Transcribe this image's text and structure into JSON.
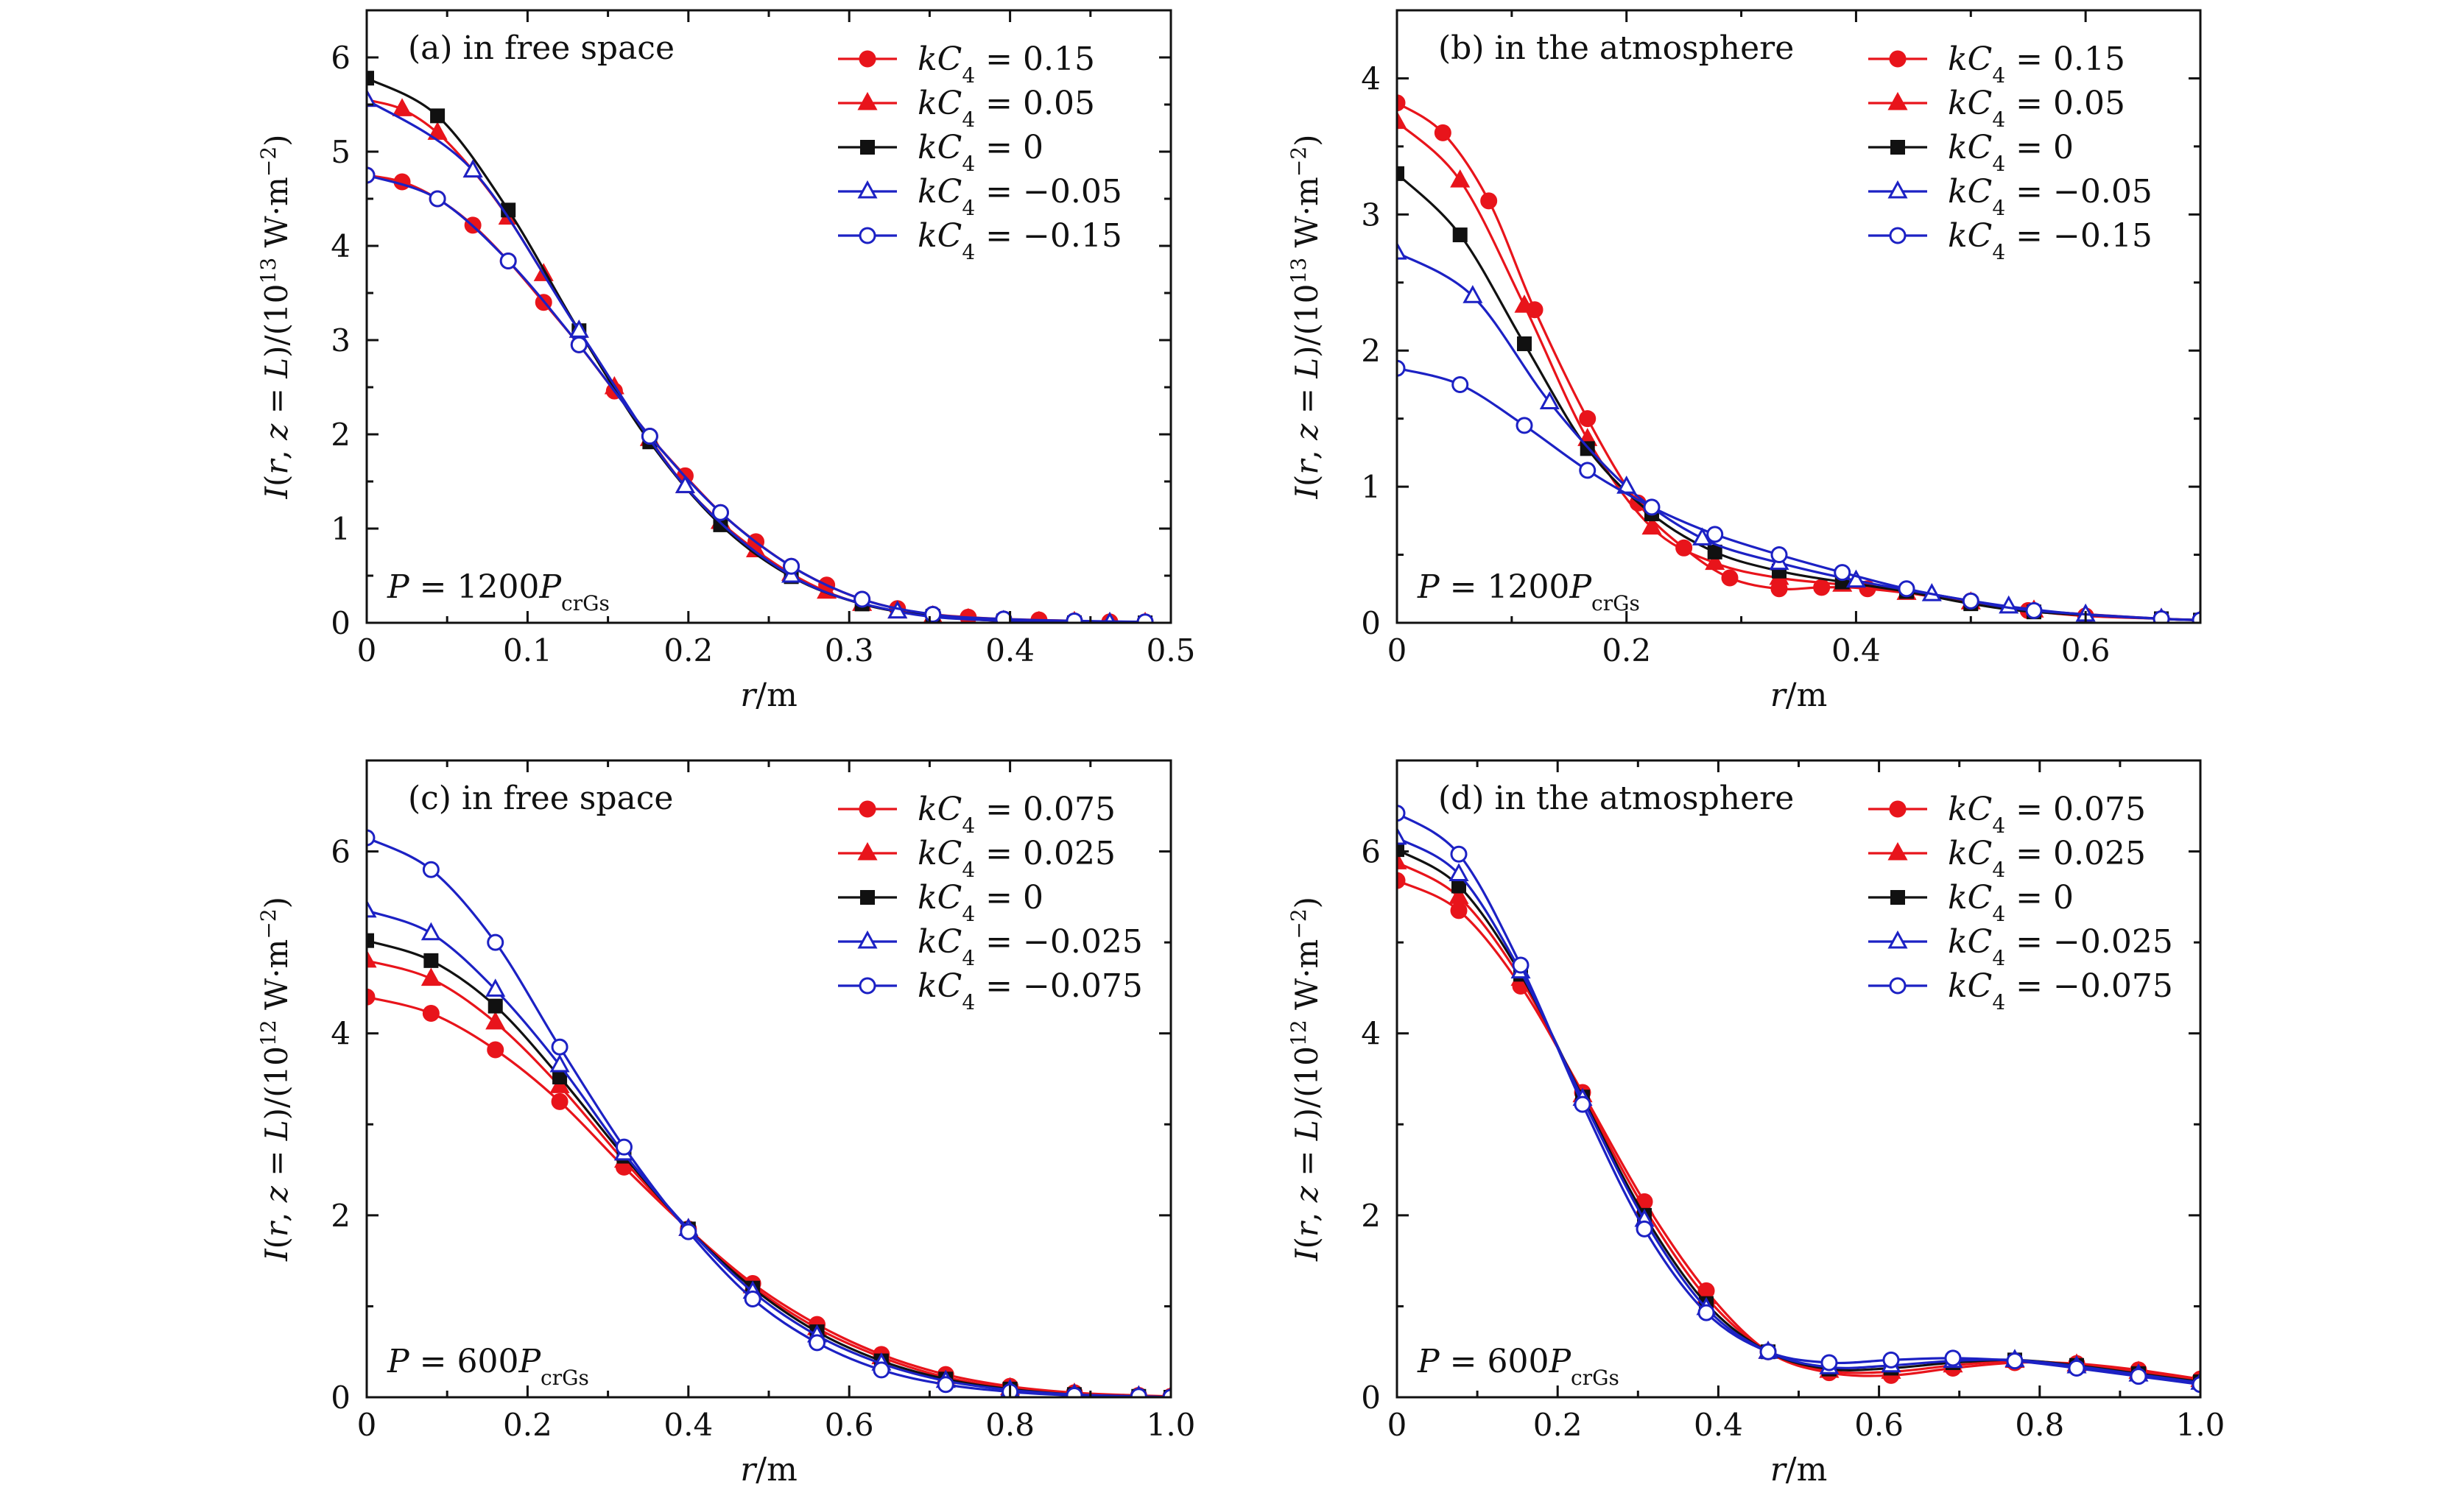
{
  "chart_data": [
    {
      "type": "line",
      "panel_label": "(a) in free space",
      "power_label": {
        "prefix": "P",
        "eq": " = 1200",
        "sym": "P",
        "sub": "crGs"
      },
      "xlabel": {
        "var": "r",
        "rest": "/m"
      },
      "ylabel": {
        "main": "I(r, z = L)/(10",
        "exp": "13",
        "unit": " W·m",
        "exp2": "−2",
        "close": ")"
      },
      "xlim": [
        0,
        0.5
      ],
      "ylim": [
        0,
        6.5
      ],
      "xticks": [
        0,
        0.1,
        0.2,
        0.3,
        0.4,
        0.5
      ],
      "xtick_labels": [
        "0",
        "0.1",
        "0.2",
        "0.3",
        "0.4",
        "0.5"
      ],
      "yticks": [
        0,
        1,
        2,
        3,
        4,
        5,
        6
      ],
      "ytick_labels": [
        "0",
        "1",
        "2",
        "3",
        "4",
        "5",
        "6"
      ],
      "legend_position": "top-right",
      "series": [
        {
          "name": "kC4 = 0.15",
          "value_label": "0.15",
          "color": "#e8141b",
          "marker": "circle-filled",
          "x": [
            0,
            0.022,
            0.044,
            0.066,
            0.088,
            0.11,
            0.132,
            0.154,
            0.176,
            0.198,
            0.22,
            0.242,
            0.264,
            0.286,
            0.308,
            0.33,
            0.352,
            0.374,
            0.396,
            0.418,
            0.44,
            0.462,
            0.484
          ],
          "y": [
            4.75,
            4.68,
            4.5,
            4.22,
            3.84,
            3.4,
            2.95,
            2.46,
            1.98,
            1.56,
            1.17,
            0.86,
            0.6,
            0.4,
            0.25,
            0.15,
            0.09,
            0.06,
            0.04,
            0.03,
            0.02,
            0.01,
            0.01
          ]
        },
        {
          "name": "kC4 = 0.05",
          "value_label": "0.05",
          "color": "#e8141b",
          "marker": "triangle-filled",
          "x": [
            0,
            0.022,
            0.044,
            0.066,
            0.088,
            0.11,
            0.132,
            0.154,
            0.176,
            0.198,
            0.22,
            0.242,
            0.264,
            0.286,
            0.308,
            0.33,
            0.352,
            0.374,
            0.396,
            0.418,
            0.44,
            0.462,
            0.484
          ],
          "y": [
            5.55,
            5.45,
            5.2,
            4.8,
            4.3,
            3.7,
            3.1,
            2.5,
            1.95,
            1.45,
            1.07,
            0.77,
            0.52,
            0.33,
            0.2,
            0.12,
            0.07,
            0.04,
            0.02,
            0.01,
            0.01,
            0.0,
            0.0
          ]
        },
        {
          "name": "kC4 = 0",
          "value_label": "0",
          "color": "#111111",
          "marker": "square-filled",
          "x": [
            0,
            0.044,
            0.088,
            0.132,
            0.176,
            0.22,
            0.264,
            0.308,
            0.352,
            0.396,
            0.44,
            0.484
          ],
          "y": [
            5.78,
            5.38,
            4.38,
            3.1,
            1.92,
            1.04,
            0.49,
            0.2,
            0.07,
            0.02,
            0.0,
            0.0
          ]
        },
        {
          "name": "kC4 = −0.05",
          "value_label": "−0.05",
          "color": "#1c21c4",
          "marker": "triangle-open",
          "x": [
            0,
            0.066,
            0.132,
            0.198,
            0.264,
            0.33,
            0.396,
            0.462
          ],
          "y": [
            5.55,
            4.8,
            3.1,
            1.45,
            0.5,
            0.12,
            0.02,
            0.0
          ]
        },
        {
          "name": "kC4 = −0.15",
          "value_label": "−0.15",
          "color": "#1c21c4",
          "marker": "circle-open",
          "x": [
            0,
            0.044,
            0.088,
            0.132,
            0.176,
            0.22,
            0.264,
            0.308,
            0.352,
            0.396,
            0.44,
            0.484
          ],
          "y": [
            4.75,
            4.5,
            3.84,
            2.95,
            1.98,
            1.17,
            0.6,
            0.25,
            0.09,
            0.04,
            0.02,
            0.01
          ]
        }
      ]
    },
    {
      "type": "line",
      "panel_label": "(b) in the atmosphere",
      "power_label": {
        "prefix": "P",
        "eq": " = 1200",
        "sym": "P",
        "sub": "crGs"
      },
      "xlabel": {
        "var": "r",
        "rest": "/m"
      },
      "ylabel": {
        "main": "I(r, z = L)/(10",
        "exp": "13",
        "unit": " W·m",
        "exp2": "−2",
        "close": ")"
      },
      "xlim": [
        0,
        0.7
      ],
      "ylim": [
        0,
        4.5
      ],
      "xticks": [
        0,
        0.2,
        0.4,
        0.6
      ],
      "xtick_labels": [
        "0",
        "0.2",
        "0.4",
        "0.6"
      ],
      "yticks": [
        0,
        1,
        2,
        3,
        4
      ],
      "ytick_labels": [
        "0",
        "1",
        "2",
        "3",
        "4"
      ],
      "legend_position": "top-right",
      "series": [
        {
          "name": "kC4 = 0.15",
          "value_label": "0.15",
          "color": "#e8141b",
          "marker": "circle-filled",
          "x": [
            0,
            0.04,
            0.08,
            0.12,
            0.166,
            0.21,
            0.25,
            0.29,
            0.333,
            0.37,
            0.41,
            0.5,
            0.55,
            0.6,
            0.666,
            0.7
          ],
          "y": [
            3.82,
            3.6,
            3.1,
            2.3,
            1.5,
            0.88,
            0.55,
            0.33,
            0.25,
            0.26,
            0.25,
            0.16,
            0.09,
            0.05,
            0.03,
            0.02
          ]
        },
        {
          "name": "kC4 = 0.05",
          "value_label": "0.05",
          "color": "#e8141b",
          "marker": "triangle-filled",
          "x": [
            0,
            0.055,
            0.111,
            0.166,
            0.222,
            0.277,
            0.333,
            0.388,
            0.444,
            0.5,
            0.555,
            0.666,
            0.7
          ],
          "y": [
            3.68,
            3.25,
            2.33,
            1.35,
            0.7,
            0.44,
            0.33,
            0.28,
            0.22,
            0.15,
            0.09,
            0.03,
            0.02
          ]
        },
        {
          "name": "kC4 = 0",
          "value_label": "0",
          "color": "#111111",
          "marker": "square-filled",
          "x": [
            0,
            0.055,
            0.111,
            0.166,
            0.222,
            0.277,
            0.333,
            0.388,
            0.444,
            0.5,
            0.555,
            0.666,
            0.7
          ],
          "y": [
            3.3,
            2.85,
            2.05,
            1.28,
            0.8,
            0.52,
            0.38,
            0.3,
            0.23,
            0.14,
            0.08,
            0.03,
            0.02
          ]
        },
        {
          "name": "kC4 = −0.05",
          "value_label": "−0.05",
          "color": "#1c21c4",
          "marker": "triangle-open",
          "x": [
            0,
            0.066,
            0.133,
            0.2,
            0.266,
            0.333,
            0.4,
            0.466,
            0.533,
            0.6,
            0.666,
            0.7
          ],
          "y": [
            2.72,
            2.4,
            1.62,
            1.0,
            0.62,
            0.44,
            0.31,
            0.21,
            0.12,
            0.06,
            0.03,
            0.02
          ]
        },
        {
          "name": "kC4 = −0.15",
          "value_label": "−0.15",
          "color": "#1c21c4",
          "marker": "circle-open",
          "x": [
            0,
            0.055,
            0.111,
            0.166,
            0.222,
            0.277,
            0.333,
            0.388,
            0.444,
            0.5,
            0.555,
            0.666,
            0.7
          ],
          "y": [
            1.87,
            1.75,
            1.45,
            1.12,
            0.85,
            0.65,
            0.5,
            0.37,
            0.25,
            0.16,
            0.09,
            0.03,
            0.02
          ]
        }
      ]
    },
    {
      "type": "line",
      "panel_label": "(c) in free space",
      "power_label": {
        "prefix": "P",
        "eq": " = 600",
        "sym": "P",
        "sub": "crGs"
      },
      "xlabel": {
        "var": "r",
        "rest": "/m"
      },
      "ylabel": {
        "main": "I(r, z = L)/(10",
        "exp": "12",
        "unit": " W·m",
        "exp2": "−2",
        "close": ")"
      },
      "xlim": [
        0,
        1.0
      ],
      "ylim": [
        0,
        7
      ],
      "xticks": [
        0,
        0.2,
        0.4,
        0.6,
        0.8,
        1.0
      ],
      "xtick_labels": [
        "0",
        "0.2",
        "0.4",
        "0.6",
        "0.8",
        "1.0"
      ],
      "yticks": [
        0,
        2,
        4,
        6
      ],
      "ytick_labels": [
        "0",
        "2",
        "4",
        "6"
      ],
      "legend_position": "top-right",
      "series": [
        {
          "name": "kC4 = 0.075",
          "value_label": "0.075",
          "color": "#e8141b",
          "marker": "circle-filled",
          "x": [
            0,
            0.08,
            0.16,
            0.24,
            0.32,
            0.4,
            0.48,
            0.56,
            0.64,
            0.72,
            0.8,
            0.88,
            0.96,
            1.0
          ],
          "y": [
            4.4,
            4.22,
            3.82,
            3.25,
            2.53,
            1.85,
            1.25,
            0.8,
            0.47,
            0.25,
            0.12,
            0.05,
            0.02,
            0.01
          ]
        },
        {
          "name": "kC4 = 0.025",
          "value_label": "0.025",
          "color": "#e8141b",
          "marker": "triangle-filled",
          "x": [
            0,
            0.08,
            0.16,
            0.24,
            0.32,
            0.4,
            0.48,
            0.56,
            0.64,
            0.72,
            0.8,
            0.88,
            0.96,
            1.0
          ],
          "y": [
            4.8,
            4.6,
            4.12,
            3.42,
            2.6,
            1.85,
            1.22,
            0.76,
            0.44,
            0.22,
            0.1,
            0.04,
            0.01,
            0.01
          ]
        },
        {
          "name": "kC4 = 0",
          "value_label": "0",
          "color": "#111111",
          "marker": "square-filled",
          "x": [
            0,
            0.08,
            0.16,
            0.24,
            0.32,
            0.4,
            0.48,
            0.56,
            0.64,
            0.72,
            0.8,
            0.88,
            0.96,
            1.0
          ],
          "y": [
            5.02,
            4.8,
            4.3,
            3.52,
            2.65,
            1.85,
            1.2,
            0.72,
            0.4,
            0.2,
            0.09,
            0.03,
            0.01,
            0.0
          ]
        },
        {
          "name": "kC4 = −0.025",
          "value_label": "−0.025",
          "color": "#1c21c4",
          "marker": "triangle-open",
          "x": [
            0,
            0.08,
            0.16,
            0.24,
            0.32,
            0.4,
            0.48,
            0.56,
            0.64,
            0.72,
            0.8,
            0.88,
            0.96,
            1.0
          ],
          "y": [
            5.35,
            5.1,
            4.48,
            3.65,
            2.68,
            1.85,
            1.16,
            0.68,
            0.37,
            0.18,
            0.08,
            0.03,
            0.01,
            0.0
          ]
        },
        {
          "name": "kC4 = −0.075",
          "value_label": "−0.075",
          "color": "#1c21c4",
          "marker": "circle-open",
          "x": [
            0,
            0.08,
            0.16,
            0.24,
            0.32,
            0.4,
            0.48,
            0.56,
            0.64,
            0.72,
            0.8,
            0.88,
            0.96,
            1.0
          ],
          "y": [
            6.15,
            5.8,
            5.0,
            3.85,
            2.75,
            1.82,
            1.08,
            0.6,
            0.3,
            0.14,
            0.06,
            0.02,
            0.01,
            0.0
          ]
        }
      ]
    },
    {
      "type": "line",
      "panel_label": "(d) in the atmosphere",
      "power_label": {
        "prefix": "P",
        "eq": " = 600",
        "sym": "P",
        "sub": "crGs"
      },
      "xlabel": {
        "var": "r",
        "rest": "/m"
      },
      "ylabel": {
        "main": "I(r, z = L)/(10",
        "exp": "12",
        "unit": " W·m",
        "exp2": "−2",
        "close": ")"
      },
      "xlim": [
        0,
        1.0
      ],
      "ylim": [
        0,
        7
      ],
      "xticks": [
        0,
        0.2,
        0.4,
        0.6,
        0.8,
        1.0
      ],
      "xtick_labels": [
        "0",
        "0.2",
        "0.4",
        "0.6",
        "0.8",
        "1.0"
      ],
      "yticks": [
        0,
        2,
        4,
        6
      ],
      "ytick_labels": [
        "0",
        "2",
        "4",
        "6"
      ],
      "legend_position": "top-right",
      "series": [
        {
          "name": "kC4 = 0.075",
          "value_label": "0.075",
          "color": "#e8141b",
          "marker": "circle-filled",
          "x": [
            0,
            0.077,
            0.154,
            0.231,
            0.308,
            0.385,
            0.462,
            0.538,
            0.615,
            0.692,
            0.769,
            0.846,
            0.923,
            1.0
          ],
          "y": [
            5.68,
            5.35,
            4.52,
            3.35,
            2.15,
            1.17,
            0.5,
            0.27,
            0.24,
            0.32,
            0.38,
            0.37,
            0.3,
            0.2
          ]
        },
        {
          "name": "kC4 = 0.025",
          "value_label": "0.025",
          "color": "#e8141b",
          "marker": "triangle-filled",
          "x": [
            0,
            0.077,
            0.154,
            0.231,
            0.308,
            0.385,
            0.462,
            0.538,
            0.615,
            0.692,
            0.769,
            0.846,
            0.923,
            1.0
          ],
          "y": [
            5.88,
            5.5,
            4.6,
            3.32,
            2.08,
            1.1,
            0.5,
            0.29,
            0.28,
            0.35,
            0.4,
            0.36,
            0.28,
            0.19
          ]
        },
        {
          "name": "kC4 = 0",
          "value_label": "0",
          "color": "#111111",
          "marker": "square-filled",
          "x": [
            0,
            0.077,
            0.154,
            0.231,
            0.308,
            0.385,
            0.462,
            0.538,
            0.615,
            0.692,
            0.769,
            0.846,
            0.923,
            1.0
          ],
          "y": [
            6.02,
            5.62,
            4.65,
            3.3,
            2.0,
            1.03,
            0.5,
            0.31,
            0.32,
            0.38,
            0.41,
            0.35,
            0.26,
            0.17
          ]
        },
        {
          "name": "kC4 = −0.025",
          "value_label": "−0.025",
          "color": "#1c21c4",
          "marker": "triangle-open",
          "x": [
            0,
            0.077,
            0.154,
            0.231,
            0.308,
            0.385,
            0.462,
            0.538,
            0.615,
            0.692,
            0.769,
            0.846,
            0.923,
            1.0
          ],
          "y": [
            6.15,
            5.75,
            4.68,
            3.28,
            1.95,
            0.98,
            0.5,
            0.33,
            0.35,
            0.4,
            0.41,
            0.34,
            0.25,
            0.16
          ]
        },
        {
          "name": "kC4 = −0.075",
          "value_label": "−0.075",
          "color": "#1c21c4",
          "marker": "circle-open",
          "x": [
            0,
            0.077,
            0.154,
            0.231,
            0.308,
            0.385,
            0.462,
            0.538,
            0.615,
            0.692,
            0.769,
            0.846,
            0.923,
            1.0
          ],
          "y": [
            6.42,
            5.97,
            4.75,
            3.22,
            1.85,
            0.93,
            0.5,
            0.38,
            0.41,
            0.43,
            0.4,
            0.32,
            0.23,
            0.14
          ]
        }
      ]
    }
  ]
}
